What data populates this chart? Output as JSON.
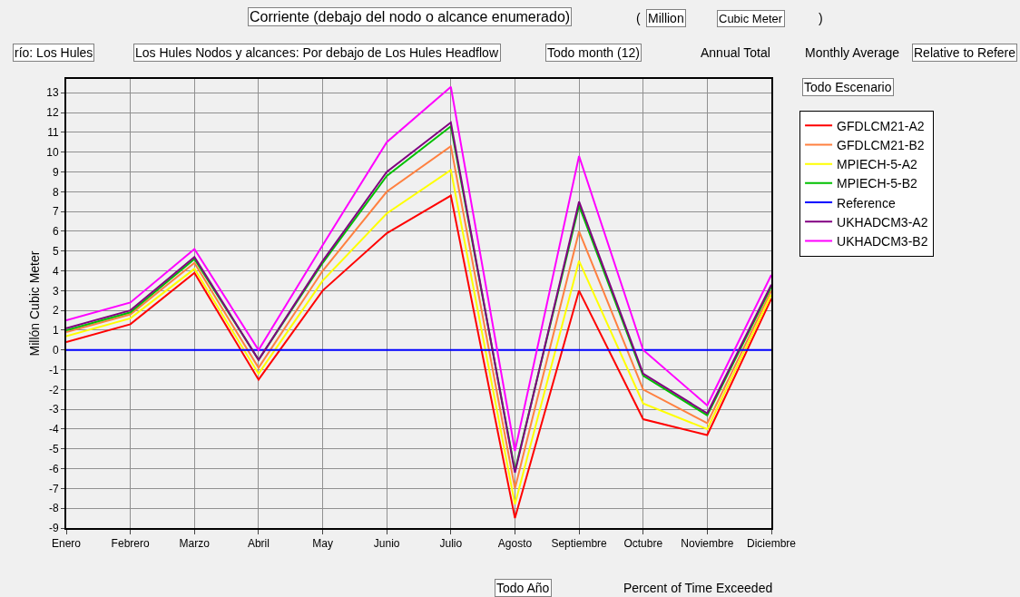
{
  "chart_data": {
    "type": "line",
    "title": "Corriente (debajo del nodo o alcance enumerado)",
    "ylabel": "Millón Cubic Meter",
    "categories": [
      "Enero",
      "Febrero",
      "Marzo",
      "Abril",
      "May",
      "Junio",
      "Julio",
      "Agosto",
      "Septiembre",
      "Octubre",
      "Noviembre",
      "Diciembre"
    ],
    "series": [
      {
        "name": "GFDLCM21-A2",
        "color": "#ff0000",
        "values": [
          0.4,
          1.3,
          3.9,
          -1.5,
          3.0,
          5.9,
          7.8,
          -8.5,
          3.0,
          -3.5,
          -4.3,
          2.6
        ]
      },
      {
        "name": "GFDLCM21-B2",
        "color": "#ff8040",
        "values": [
          0.9,
          1.8,
          4.4,
          -0.9,
          4.0,
          8.0,
          10.3,
          -7.0,
          6.0,
          -2.0,
          -3.7,
          3.0
        ]
      },
      {
        "name": "MPIECH-5-A2",
        "color": "#ffff00",
        "values": [
          0.7,
          1.6,
          4.1,
          -1.2,
          3.5,
          6.9,
          9.1,
          -7.8,
          4.5,
          -2.7,
          -4.0,
          2.8
        ]
      },
      {
        "name": "MPIECH-5-B2",
        "color": "#00c000",
        "values": [
          1.0,
          1.9,
          4.6,
          -0.5,
          4.4,
          8.8,
          11.3,
          -6.1,
          7.3,
          -1.3,
          -3.3,
          3.2
        ]
      },
      {
        "name": "Reference",
        "color": "#0000ff",
        "values": [
          0,
          0,
          0,
          0,
          0,
          0,
          0,
          0,
          0,
          0,
          0,
          0
        ]
      },
      {
        "name": "UKHADCM3-A2",
        "color": "#800080",
        "values": [
          1.1,
          2.0,
          4.7,
          -0.5,
          4.5,
          9.0,
          11.5,
          -6.2,
          7.5,
          -1.2,
          -3.2,
          3.3
        ]
      },
      {
        "name": "UKHADCM3-B2",
        "color": "#ff00ff",
        "values": [
          1.5,
          2.4,
          5.1,
          0.0,
          5.3,
          10.5,
          13.3,
          -5.1,
          9.8,
          0.0,
          -2.8,
          3.8
        ]
      }
    ],
    "ylim": [
      -9,
      13.7
    ],
    "yticks": [
      -9,
      -8,
      -7,
      -6,
      -5,
      -4,
      -3,
      -2,
      -1,
      0,
      1,
      2,
      3,
      4,
      5,
      6,
      7,
      8,
      9,
      10,
      11,
      12,
      13
    ],
    "grid": true,
    "legend": "right",
    "marker": "none",
    "line_style": "solid",
    "annotations": [
      "(",
      "Million",
      "Cubic Meter",
      ")",
      "río: Los Hules",
      "Los Hules Nodos y alcances: Por debajo de Los Hules Headflow",
      "Todo month (12)",
      "Annual Total",
      "Monthly Average",
      "Relative to Refere",
      "Todo Escenario",
      "Todo Año",
      "Percent of Time Exceeded"
    ]
  }
}
